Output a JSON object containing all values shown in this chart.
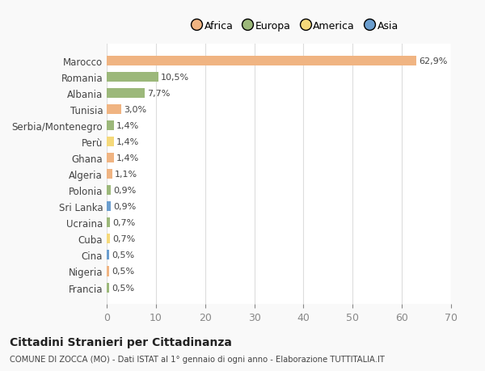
{
  "countries": [
    "Marocco",
    "Romania",
    "Albania",
    "Tunisia",
    "Serbia/Montenegro",
    "Perù",
    "Ghana",
    "Algeria",
    "Polonia",
    "Sri Lanka",
    "Ucraina",
    "Cuba",
    "Cina",
    "Nigeria",
    "Francia"
  ],
  "values": [
    62.9,
    10.5,
    7.7,
    3.0,
    1.4,
    1.4,
    1.4,
    1.1,
    0.9,
    0.9,
    0.7,
    0.7,
    0.5,
    0.5,
    0.5
  ],
  "labels": [
    "62,9%",
    "10,5%",
    "7,7%",
    "3,0%",
    "1,4%",
    "1,4%",
    "1,4%",
    "1,1%",
    "0,9%",
    "0,9%",
    "0,7%",
    "0,7%",
    "0,5%",
    "0,5%",
    "0,5%"
  ],
  "colors": [
    "#f0b482",
    "#9cb87a",
    "#9cb87a",
    "#f0b482",
    "#9cb87a",
    "#f5d97a",
    "#f0b482",
    "#f0b482",
    "#9cb87a",
    "#6b9ecf",
    "#9cb87a",
    "#f5d97a",
    "#6b9ecf",
    "#f0b482",
    "#9cb87a"
  ],
  "legend_labels": [
    "Africa",
    "Europa",
    "America",
    "Asia"
  ],
  "legend_colors": [
    "#f0b482",
    "#9cb87a",
    "#f5d97a",
    "#6b9ecf"
  ],
  "title": "Cittadini Stranieri per Cittadinanza",
  "subtitle": "COMUNE DI ZOCCA (MO) - Dati ISTAT al 1° gennaio di ogni anno - Elaborazione TUTTITALIA.IT",
  "xlim": [
    0,
    70
  ],
  "xticks": [
    0,
    10,
    20,
    30,
    40,
    50,
    60,
    70
  ],
  "bg_color": "#f9f9f9",
  "plot_bg_color": "#ffffff",
  "grid_color": "#dddddd",
  "bar_height": 0.6
}
